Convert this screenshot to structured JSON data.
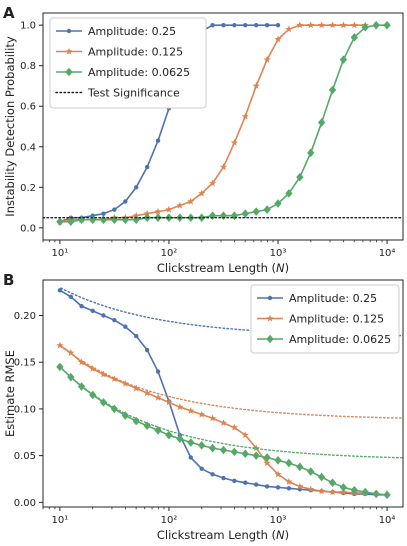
{
  "chart_data": [
    {
      "panel_label": "A",
      "type": "line",
      "xlabel": "Clickstream Length (N)",
      "ylabel": "Instability Detection Probability",
      "xscale": "log",
      "xlim": [
        7,
        14000
      ],
      "ylim": [
        -0.06,
        1.06
      ],
      "x_ticks": [
        {
          "value": 10,
          "label": "10¹"
        },
        {
          "value": 100,
          "label": "10²"
        },
        {
          "value": 1000,
          "label": "10³"
        },
        {
          "value": 10000,
          "label": "10⁴"
        }
      ],
      "y_ticks": [
        0.0,
        0.2,
        0.4,
        0.6,
        0.8,
        1.0
      ],
      "y_tick_labels": [
        "0.0",
        "0.2",
        "0.4",
        "0.6",
        "0.8",
        "1.0"
      ],
      "grid": false,
      "legend_position": "upper-left",
      "series": [
        {
          "name": "Amplitude: 0.25",
          "color": "#4c72b0",
          "marker": "circle",
          "x": [
            10,
            12.6,
            15.8,
            20,
            25.1,
            31.6,
            39.8,
            50.1,
            63.1,
            79.4,
            100,
            125.9,
            158.5,
            199.5,
            251.2,
            316.2,
            398.1,
            501.2,
            631,
            794.3,
            1000
          ],
          "y": [
            0.03,
            0.05,
            0.05,
            0.06,
            0.07,
            0.09,
            0.13,
            0.2,
            0.3,
            0.43,
            0.59,
            0.75,
            0.89,
            0.97,
            1.0,
            1.0,
            1.0,
            1.0,
            1.0,
            1.0,
            1.0
          ]
        },
        {
          "name": "Amplitude: 0.125",
          "color": "#dd8452",
          "marker": "star",
          "x": [
            10,
            12.6,
            15.8,
            20,
            25.1,
            31.6,
            39.8,
            50.1,
            63.1,
            79.4,
            100,
            125.9,
            158.5,
            199.5,
            251.2,
            316.2,
            398.1,
            501.2,
            631,
            794.3,
            1000,
            1258.9,
            1584.9,
            1995.3,
            2511.9,
            3162.3,
            3981.1,
            5011.9,
            6309.6
          ],
          "y": [
            0.03,
            0.04,
            0.04,
            0.04,
            0.04,
            0.05,
            0.05,
            0.06,
            0.07,
            0.08,
            0.09,
            0.11,
            0.13,
            0.17,
            0.22,
            0.3,
            0.42,
            0.55,
            0.7,
            0.83,
            0.93,
            0.98,
            1.0,
            1.0,
            1.0,
            1.0,
            1.0,
            1.0,
            1.0
          ]
        },
        {
          "name": "Amplitude: 0.0625",
          "color": "#55a868",
          "marker": "diamond",
          "x": [
            10,
            12.6,
            15.8,
            20,
            25.1,
            31.6,
            39.8,
            50.1,
            63.1,
            79.4,
            100,
            125.9,
            158.5,
            199.5,
            251.2,
            316.2,
            398.1,
            501.2,
            631,
            794.3,
            1000,
            1258.9,
            1584.9,
            1995.3,
            2511.9,
            3162.3,
            3981.1,
            5011.9,
            6309.6,
            7943.3,
            10000
          ],
          "y": [
            0.03,
            0.03,
            0.04,
            0.04,
            0.04,
            0.04,
            0.04,
            0.04,
            0.05,
            0.05,
            0.05,
            0.05,
            0.05,
            0.05,
            0.06,
            0.06,
            0.06,
            0.07,
            0.08,
            0.09,
            0.12,
            0.17,
            0.25,
            0.37,
            0.52,
            0.68,
            0.83,
            0.94,
            0.99,
            1.0,
            1.0
          ]
        },
        {
          "name": "Test Significance",
          "color": "#222222",
          "style": "dotted",
          "x": [
            7,
            14000
          ],
          "y": [
            0.05,
            0.05
          ]
        }
      ]
    },
    {
      "panel_label": "B",
      "type": "line",
      "xlabel": "Clickstream Length (N)",
      "ylabel": "Estimate RMSE",
      "xscale": "log",
      "xlim": [
        7,
        14000
      ],
      "ylim": [
        -0.005,
        0.238
      ],
      "x_ticks": [
        {
          "value": 10,
          "label": "10¹"
        },
        {
          "value": 100,
          "label": "10²"
        },
        {
          "value": 1000,
          "label": "10³"
        },
        {
          "value": 10000,
          "label": "10⁴"
        }
      ],
      "y_ticks": [
        0.0,
        0.05,
        0.1,
        0.15,
        0.2
      ],
      "y_tick_labels": [
        "0.00",
        "0.05",
        "0.10",
        "0.15",
        "0.20"
      ],
      "grid": false,
      "legend_position": "upper-right",
      "series": [
        {
          "name": "Amplitude: 0.25",
          "color": "#4c72b0",
          "marker": "circle",
          "x": [
            10,
            12.6,
            15.8,
            20,
            25.1,
            31.6,
            39.8,
            50.1,
            63.1,
            79.4,
            100,
            125.9,
            158.5,
            199.5,
            251.2,
            316.2,
            398.1,
            501.2,
            631,
            794.3,
            1000,
            1258.9,
            1584.9,
            1995.3,
            2511.9,
            3162.3,
            3981.1,
            5011.9,
            6309.6,
            7943.3,
            10000
          ],
          "y": [
            0.227,
            0.22,
            0.21,
            0.205,
            0.2,
            0.195,
            0.188,
            0.178,
            0.163,
            0.14,
            0.108,
            0.072,
            0.048,
            0.036,
            0.03,
            0.026,
            0.023,
            0.021,
            0.019,
            0.017,
            0.016,
            0.015,
            0.014,
            0.013,
            0.012,
            0.011,
            0.01,
            0.009,
            0.009,
            0.008,
            0.008
          ]
        },
        {
          "name": "Amplitude: 0.25 fit",
          "color": "#4c72b0",
          "style": "dotted",
          "fit": {
            "type": "asymptote",
            "y_inf": 0.177,
            "a": 0.053
          }
        },
        {
          "name": "Amplitude: 0.125",
          "color": "#dd8452",
          "marker": "star",
          "x": [
            10,
            12.6,
            15.8,
            20,
            25.1,
            31.6,
            39.8,
            50.1,
            63.1,
            79.4,
            100,
            125.9,
            158.5,
            199.5,
            251.2,
            316.2,
            398.1,
            501.2,
            631,
            794.3,
            1000,
            1258.9,
            1584.9,
            1995.3,
            2511.9,
            3162.3,
            3981.1,
            5011.9,
            6309.6
          ],
          "y": [
            0.168,
            0.16,
            0.15,
            0.143,
            0.137,
            0.132,
            0.127,
            0.122,
            0.117,
            0.112,
            0.107,
            0.102,
            0.098,
            0.094,
            0.09,
            0.085,
            0.08,
            0.072,
            0.058,
            0.042,
            0.03,
            0.022,
            0.017,
            0.014,
            0.012,
            0.011,
            0.011,
            0.01,
            0.01
          ]
        },
        {
          "name": "Amplitude: 0.125 fit",
          "color": "#dd8452",
          "style": "dotted",
          "fit": {
            "type": "asymptote",
            "y_inf": 0.088,
            "a": 0.08
          }
        },
        {
          "name": "Amplitude: 0.0625",
          "color": "#55a868",
          "marker": "diamond",
          "x": [
            10,
            12.6,
            15.8,
            20,
            25.1,
            31.6,
            39.8,
            50.1,
            63.1,
            79.4,
            100,
            125.9,
            158.5,
            199.5,
            251.2,
            316.2,
            398.1,
            501.2,
            631,
            794.3,
            1000,
            1258.9,
            1584.9,
            1995.3,
            2511.9,
            3162.3,
            3981.1,
            5011.9,
            6309.6,
            7943.3,
            10000
          ],
          "y": [
            0.145,
            0.134,
            0.124,
            0.115,
            0.107,
            0.1,
            0.093,
            0.087,
            0.082,
            0.077,
            0.072,
            0.068,
            0.064,
            0.061,
            0.058,
            0.056,
            0.054,
            0.052,
            0.05,
            0.048,
            0.045,
            0.042,
            0.038,
            0.033,
            0.027,
            0.021,
            0.016,
            0.013,
            0.011,
            0.009,
            0.008
          ]
        },
        {
          "name": "Amplitude: 0.0625 fit",
          "color": "#55a868",
          "style": "dotted",
          "fit": {
            "type": "asymptote",
            "y_inf": 0.045,
            "a": 0.1
          }
        }
      ]
    }
  ]
}
